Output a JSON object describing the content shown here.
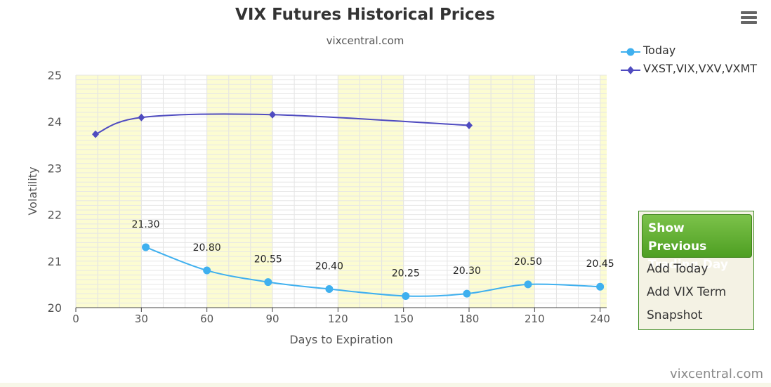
{
  "chart_data": {
    "type": "line",
    "title": "VIX Futures Historical Prices",
    "subtitle": "vixcentral.com",
    "xlabel": "Days to Expiration",
    "ylabel": "Volatility",
    "xlim": [
      0,
      243
    ],
    "ylim": [
      20,
      25
    ],
    "x_ticks": [
      0,
      30,
      60,
      90,
      120,
      150,
      180,
      210,
      240
    ],
    "y_ticks": [
      20,
      21,
      22,
      23,
      24,
      25
    ],
    "grid": true,
    "shaded_bands": [
      [
        0,
        30
      ],
      [
        60,
        90
      ],
      [
        120,
        150
      ],
      [
        180,
        210
      ],
      [
        240,
        243
      ]
    ],
    "legend_position": "top-right",
    "series": [
      {
        "name": "Today",
        "color": "#3fb0ef",
        "marker": "circle",
        "x": [
          32,
          60,
          88,
          116,
          151,
          179,
          207,
          240
        ],
        "y": [
          21.3,
          20.8,
          20.55,
          20.4,
          20.25,
          20.3,
          20.5,
          20.45
        ],
        "labels": [
          "21.30",
          "20.80",
          "20.55",
          "20.40",
          "20.25",
          "20.30",
          "20.50",
          "20.45"
        ]
      },
      {
        "name": "VXST,VIX,VXV,VXMT",
        "color": "#4f4bc0",
        "marker": "diamond",
        "x": [
          9,
          30,
          90,
          180
        ],
        "y": [
          23.73,
          24.09,
          24.15,
          23.92
        ]
      }
    ]
  },
  "toolbar": {
    "menu_icon": "hamburger-menu-icon"
  },
  "panel": {
    "show_previous_label": "Show Previous Trading Day",
    "add_today_label": "Add Today",
    "add_vix_term_label": "Add VIX Term",
    "snapshot_label": "Snapshot",
    "accent_color": "#5aa82a"
  },
  "footer": {
    "credit": "vixcentral.com"
  }
}
